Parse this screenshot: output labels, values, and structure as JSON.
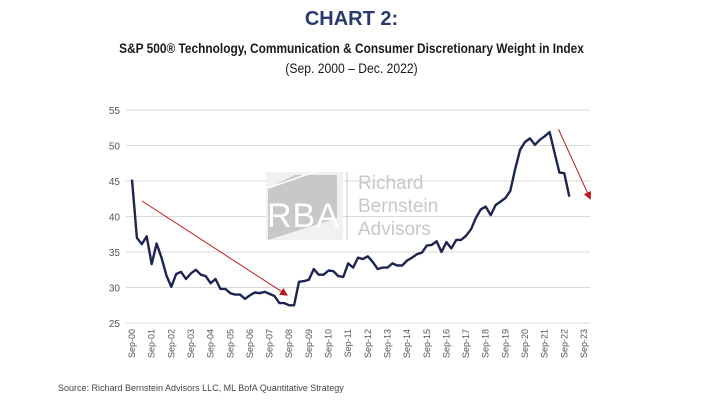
{
  "header": {
    "title": "CHART 2:",
    "subtitle": "S&P 500® Technology, Communication & Consumer Discretionary Weight in Index",
    "date_range": "(Sep. 2000 – Dec. 2022)"
  },
  "source": "Source:  Richard Bernstein Advisors LLC, ML BofA Quantitative Strategy",
  "watermark": {
    "monogram": "RBA",
    "lines": [
      "Richard",
      "Bernstein",
      "Advisors"
    ]
  },
  "colors": {
    "title": "#2a3a6e",
    "line": "#1c2552",
    "arrow": "#c0171c",
    "grid": "#d9d9d9",
    "watermark": "#c8c8c8"
  },
  "chart_data": {
    "type": "line",
    "title": "S&P 500 Technology, Communication & Consumer Discretionary Weight in Index",
    "xlabel": "",
    "ylabel": "",
    "ylim": [
      25,
      55
    ],
    "yticks": [
      25,
      30,
      35,
      40,
      45,
      50,
      55
    ],
    "xlim_years": [
      0,
      23
    ],
    "xticks": [
      "Sep-00",
      "Sep-01",
      "Sep-02",
      "Sep-03",
      "Sep-04",
      "Sep-05",
      "Sep-06",
      "Sep-07",
      "Sep-08",
      "Sep-09",
      "Sep-10",
      "Sep-11",
      "Sep-12",
      "Sep-13",
      "Sep-14",
      "Sep-15",
      "Sep-16",
      "Sep-17",
      "Sep-18",
      "Sep-19",
      "Sep-20",
      "Sep-21",
      "Sep-22",
      "Sep-23"
    ],
    "grid": true,
    "legend": "none",
    "series": [
      {
        "name": "Tech + Communication + Consumer Discretionary weight (%)",
        "x_start": "Sep-00",
        "x_step_years": 0.25,
        "values": [
          45.2,
          37.0,
          36.1,
          37.2,
          33.3,
          36.2,
          34.2,
          31.7,
          30.1,
          31.9,
          32.2,
          31.2,
          32.0,
          32.5,
          31.8,
          31.6,
          30.6,
          31.2,
          29.8,
          29.8,
          29.2,
          29.0,
          29.0,
          28.4,
          28.9,
          29.3,
          29.2,
          29.4,
          29.1,
          28.8,
          27.8,
          27.8,
          27.5,
          27.5,
          30.8,
          30.9,
          31.1,
          32.6,
          31.8,
          31.8,
          32.4,
          32.3,
          31.6,
          31.5,
          33.4,
          32.8,
          34.2,
          34.0,
          34.4,
          33.6,
          32.6,
          32.8,
          32.8,
          33.4,
          33.1,
          33.1,
          33.8,
          34.2,
          34.7,
          34.9,
          35.9,
          36.0,
          36.5,
          35.0,
          36.4,
          35.5,
          36.7,
          36.7,
          37.3,
          38.2,
          39.8,
          41.0,
          41.4,
          40.2,
          41.6,
          42.1,
          42.6,
          43.6,
          46.7,
          49.4,
          50.5,
          51.0,
          50.1,
          50.8,
          51.3,
          51.9,
          49.0,
          46.2,
          46.1,
          42.8
        ]
      }
    ],
    "annotations": [
      {
        "type": "arrow",
        "name": "downtrend-2000-2008",
        "from": [
          0.5,
          42.2
        ],
        "to": [
          7.85,
          29.0
        ]
      },
      {
        "type": "arrow",
        "name": "downtrend-2022-2023",
        "from": [
          21.7,
          52.3
        ],
        "to": [
          23.3,
          42.6
        ]
      }
    ]
  }
}
